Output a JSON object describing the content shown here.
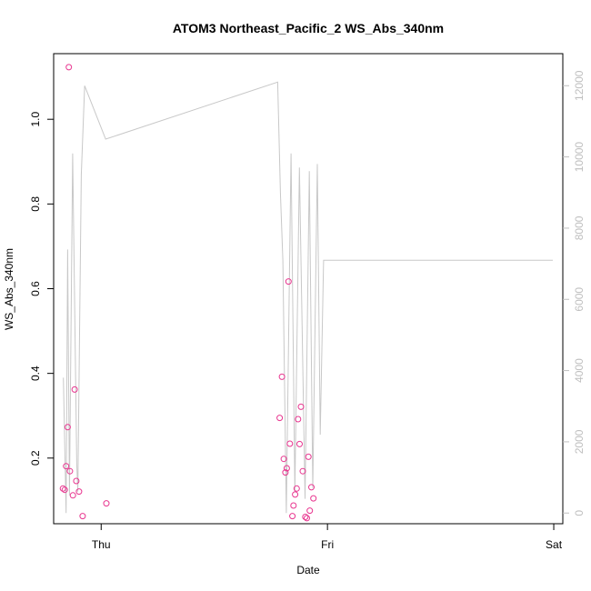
{
  "chart_data": {
    "type": "scatter",
    "title": "ATOM3 Northeast_Pacific_2 WS_Abs_340nm",
    "xlabel": "Date",
    "ylabel": "WS_Abs_340nm",
    "x_ticks": [
      {
        "label": "Thu",
        "value": 0.0
      },
      {
        "label": "Fri",
        "value": 1.0
      },
      {
        "label": "Sat",
        "value": 2.0
      }
    ],
    "xlim": [
      -0.21,
      2.04
    ],
    "ylim": [
      0.045,
      1.155
    ],
    "y_ticks": [
      0.2,
      0.4,
      0.6,
      0.8,
      1.0
    ],
    "y2lim": [
      -300,
      12900
    ],
    "y2_ticks": [
      0,
      2000,
      4000,
      6000,
      8000,
      10000,
      12000
    ],
    "grid": false,
    "colors": {
      "points": "#e8358f",
      "altitude_line": "#c8c8c8",
      "axis": "#000000",
      "right_axis": "#bfbfbf"
    },
    "series": [
      {
        "type": "scatter",
        "axis": "left",
        "x": [
          -0.169,
          -0.161,
          -0.155,
          -0.148,
          -0.143,
          -0.138,
          -0.125,
          -0.117,
          -0.11,
          -0.098,
          -0.082,
          0.023,
          0.789,
          0.799,
          0.807,
          0.814,
          0.82,
          0.828,
          0.834,
          0.845,
          0.85,
          0.857,
          0.864,
          0.87,
          0.877,
          0.883,
          0.891,
          0.902,
          0.909,
          0.916,
          0.922,
          0.929,
          0.938
        ],
        "y": [
          0.128,
          0.125,
          0.181,
          0.273,
          1.123,
          0.169,
          0.112,
          0.362,
          0.146,
          0.121,
          0.063,
          0.093,
          0.295,
          0.392,
          0.198,
          0.166,
          0.176,
          0.617,
          0.234,
          0.063,
          0.088,
          0.114,
          0.128,
          0.292,
          0.233,
          0.321,
          0.169,
          0.061,
          0.058,
          0.203,
          0.076,
          0.131,
          0.105
        ]
      },
      {
        "type": "line",
        "axis": "right",
        "x": [
          -0.167,
          -0.155,
          -0.148,
          -0.14,
          -0.126,
          -0.108,
          -0.103,
          -0.088,
          -0.073,
          0.02,
          0.78,
          0.792,
          0.803,
          0.818,
          0.839,
          0.856,
          0.876,
          0.901,
          0.92,
          0.935,
          0.955,
          0.968,
          0.983,
          1.996
        ],
        "y": [
          3800,
          0,
          7400,
          500,
          10100,
          1400,
          600,
          9500,
          12000,
          10500,
          12100,
          9000,
          7100,
          0,
          10100,
          600,
          9700,
          400,
          9600,
          700,
          9800,
          2200,
          7100,
          7100
        ]
      }
    ]
  }
}
